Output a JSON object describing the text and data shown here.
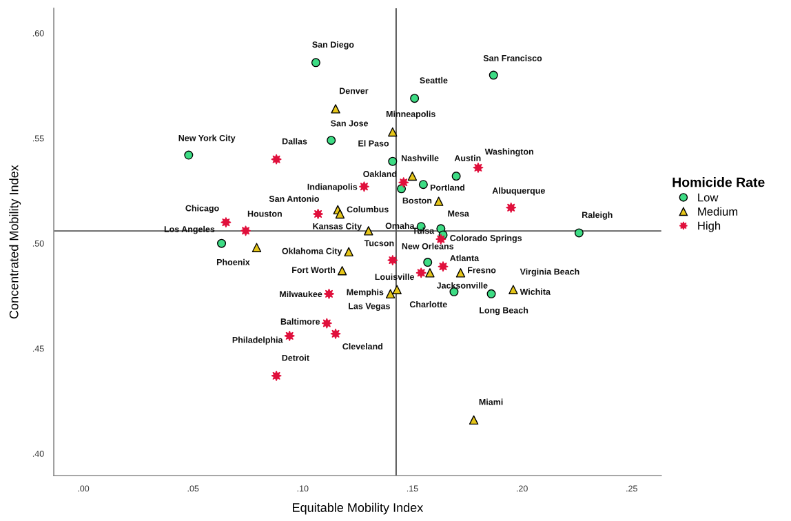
{
  "chart_data": {
    "type": "scatter",
    "xlabel": "Equitable Mobility Index",
    "ylabel": "Concentrated Mobility Index",
    "legend_title": "Homicide Rate",
    "legend": "right",
    "grid": false,
    "xlim": [
      -0.0135,
      0.2635
    ],
    "ylim": [
      0.3895,
      0.6118
    ],
    "xticks": [
      {
        "value": 0,
        "label": ".00"
      },
      {
        "value": 0.05,
        "label": ".05"
      },
      {
        "value": 0.1,
        "label": ".10"
      },
      {
        "value": 0.15,
        "label": ".15"
      },
      {
        "value": 0.2,
        "label": ".20"
      },
      {
        "value": 0.25,
        "label": ".25"
      }
    ],
    "yticks": [
      {
        "value": 0.4,
        "label": ".40"
      },
      {
        "value": 0.45,
        "label": ".45"
      },
      {
        "value": 0.5,
        "label": ".50"
      },
      {
        "value": 0.55,
        "label": ".55"
      },
      {
        "value": 0.6,
        "label": ".60"
      }
    ],
    "ref_lines": [
      {
        "axis": "x",
        "value": 0.1426,
        "color": "#333333"
      },
      {
        "axis": "y",
        "value": 0.5059,
        "color": "#555555"
      }
    ],
    "series": [
      {
        "name": "Low",
        "color": "#3ddc84",
        "marker": "circle",
        "x": [
          0.106,
          0.187,
          0.151,
          0.113,
          0.048,
          0.141,
          0.17,
          0.155,
          0.145,
          0.154,
          0.163,
          0.164,
          0.226,
          0.063,
          0.157,
          0.169,
          0.186
        ],
        "values": [
          0.586,
          0.58,
          0.569,
          0.549,
          0.542,
          0.539,
          0.532,
          0.528,
          0.526,
          0.508,
          0.507,
          0.504,
          0.505,
          0.5,
          0.491,
          0.477,
          0.476
        ]
      },
      {
        "name": "Medium",
        "color": "#e6c619",
        "marker": "triangle",
        "x": [
          0.115,
          0.141,
          0.15,
          0.162,
          0.116,
          0.117,
          0.13,
          0.121,
          0.079,
          0.118,
          0.158,
          0.172,
          0.196,
          0.14,
          0.143,
          0.178
        ],
        "values": [
          0.564,
          0.553,
          0.532,
          0.52,
          0.516,
          0.514,
          0.506,
          0.496,
          0.498,
          0.487,
          0.486,
          0.486,
          0.478,
          0.476,
          0.478,
          0.416
        ]
      },
      {
        "name": "High",
        "color": "#e0103c",
        "marker": "star",
        "x": [
          0.088,
          0.18,
          0.146,
          0.128,
          0.195,
          0.107,
          0.065,
          0.074,
          0.163,
          0.141,
          0.164,
          0.154,
          0.112,
          0.111,
          0.115,
          0.094,
          0.088
        ],
        "values": [
          0.54,
          0.536,
          0.529,
          0.527,
          0.517,
          0.514,
          0.51,
          0.506,
          0.502,
          0.492,
          0.489,
          0.486,
          0.476,
          0.462,
          0.457,
          0.456,
          0.437
        ]
      }
    ],
    "annotations": [
      {
        "text": "San Diego",
        "x": 0.106,
        "y": 0.586
      },
      {
        "text": "San Francisco",
        "x": 0.187,
        "y": 0.58
      },
      {
        "text": "Seattle",
        "x": 0.151,
        "y": 0.569
      },
      {
        "text": "Denver",
        "x": 0.115,
        "y": 0.564
      },
      {
        "text": "Minneapolis",
        "x": 0.141,
        "y": 0.553
      },
      {
        "text": "San Jose",
        "x": 0.113,
        "y": 0.549
      },
      {
        "text": "New York City",
        "x": 0.048,
        "y": 0.542
      },
      {
        "text": "Dallas",
        "x": 0.088,
        "y": 0.54
      },
      {
        "text": "El Paso",
        "x": 0.141,
        "y": 0.539
      },
      {
        "text": "Austin",
        "x": 0.17,
        "y": 0.532
      },
      {
        "text": "Washington",
        "x": 0.18,
        "y": 0.536
      },
      {
        "text": "Nashville",
        "x": 0.15,
        "y": 0.532
      },
      {
        "text": "Oakland",
        "x": 0.146,
        "y": 0.529
      },
      {
        "text": "Portland",
        "x": 0.155,
        "y": 0.528
      },
      {
        "text": "Indianapolis",
        "x": 0.128,
        "y": 0.527
      },
      {
        "text": "Boston",
        "x": 0.162,
        "y": 0.52
      },
      {
        "text": "Albuquerque",
        "x": 0.195,
        "y": 0.517
      },
      {
        "text": "San Antonio",
        "x": 0.107,
        "y": 0.514
      },
      {
        "text": "Columbus",
        "x": 0.117,
        "y": 0.514
      },
      {
        "text": "Chicago",
        "x": 0.065,
        "y": 0.51
      },
      {
        "text": "Houston",
        "x": 0.074,
        "y": 0.506
      },
      {
        "text": "Kansas City",
        "x": 0.13,
        "y": 0.506
      },
      {
        "text": "Omaha",
        "x": 0.154,
        "y": 0.508
      },
      {
        "text": "Mesa",
        "x": 0.163,
        "y": 0.507
      },
      {
        "text": "Atlanta",
        "x": 0.164,
        "y": 0.489
      },
      {
        "text": "Raleigh",
        "x": 0.226,
        "y": 0.505
      },
      {
        "text": "Los Angeles",
        "x": 0.063,
        "y": 0.5
      },
      {
        "text": "Colorado Springs",
        "x": 0.164,
        "y": 0.504
      },
      {
        "text": "Tulsa",
        "x": 0.163,
        "y": 0.502
      },
      {
        "text": "Phoenix",
        "x": 0.079,
        "y": 0.498
      },
      {
        "text": "Oklahoma City",
        "x": 0.121,
        "y": 0.496
      },
      {
        "text": "Tucson",
        "x": 0.141,
        "y": 0.492
      },
      {
        "text": "New Orleans",
        "x": 0.157,
        "y": 0.491
      },
      {
        "text": "Fort Worth",
        "x": 0.118,
        "y": 0.487
      },
      {
        "text": "Louisville",
        "x": 0.154,
        "y": 0.486
      },
      {
        "text": "Jacksonville",
        "x": 0.158,
        "y": 0.486
      },
      {
        "text": "Fresno",
        "x": 0.172,
        "y": 0.486
      },
      {
        "text": "Virginia Beach",
        "x": 0.196,
        "y": 0.478
      },
      {
        "text": "Wichita",
        "x": 0.196,
        "y": 0.478
      },
      {
        "text": "Milwaukee",
        "x": 0.112,
        "y": 0.476
      },
      {
        "text": "Memphis",
        "x": 0.14,
        "y": 0.476
      },
      {
        "text": "Charlotte",
        "x": 0.169,
        "y": 0.477
      },
      {
        "text": "Long Beach",
        "x": 0.186,
        "y": 0.476
      },
      {
        "text": "Las Vegas",
        "x": 0.143,
        "y": 0.478
      },
      {
        "text": "Baltimore",
        "x": 0.111,
        "y": 0.462
      },
      {
        "text": "Philadelphia",
        "x": 0.094,
        "y": 0.456
      },
      {
        "text": "Cleveland",
        "x": 0.115,
        "y": 0.457
      },
      {
        "text": "Detroit",
        "x": 0.088,
        "y": 0.437
      },
      {
        "text": "Miami",
        "x": 0.178,
        "y": 0.416
      }
    ]
  }
}
